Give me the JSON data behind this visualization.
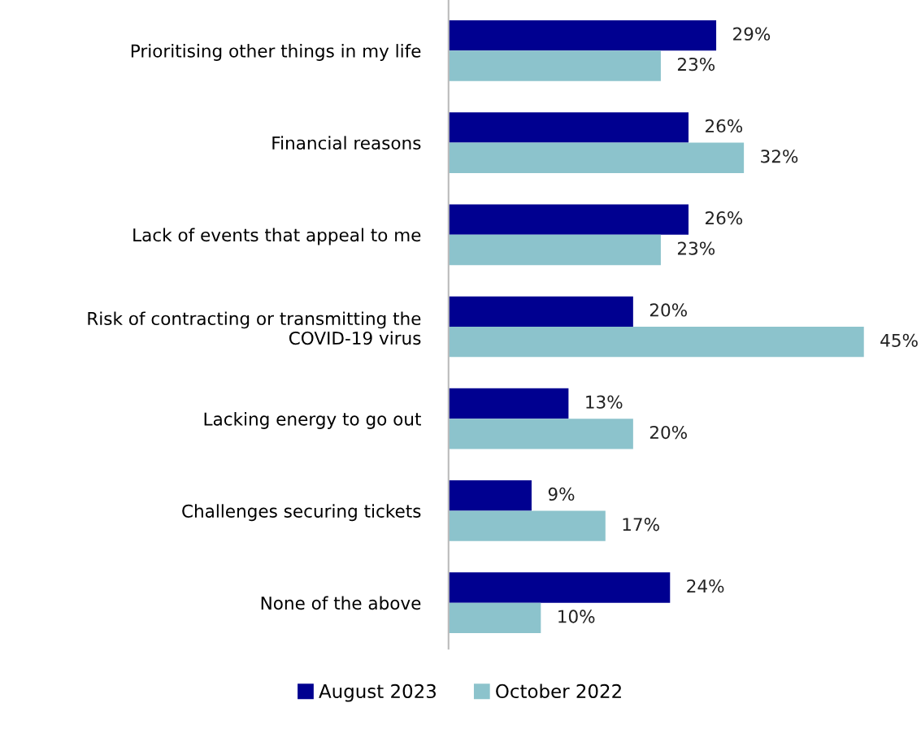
{
  "chart_data": {
    "type": "bar",
    "orientation": "horizontal",
    "categories": [
      "Prioritising other things in my life",
      "Financial reasons",
      "Lack of events that appeal to me",
      "Risk of contracting or transmitting the COVID-19 virus",
      "Lacking energy to go out",
      "Challenges securing tickets",
      "None of the above"
    ],
    "series": [
      {
        "name": "August 2023",
        "color": "#000090",
        "values": [
          29,
          26,
          26,
          20,
          13,
          9,
          24
        ],
        "value_labels": [
          "29%",
          "26%",
          "26%",
          "20%",
          "13%",
          "9%",
          "24%"
        ]
      },
      {
        "name": "October 2022",
        "color": "#8cc3cc",
        "values": [
          23,
          32,
          23,
          45,
          20,
          17,
          10
        ],
        "value_labels": [
          "23%",
          "32%",
          "23%",
          "45%",
          "20%",
          "17%",
          "10%"
        ]
      }
    ],
    "legend": "bottom",
    "grid": false,
    "tick_labels": "y"
  }
}
